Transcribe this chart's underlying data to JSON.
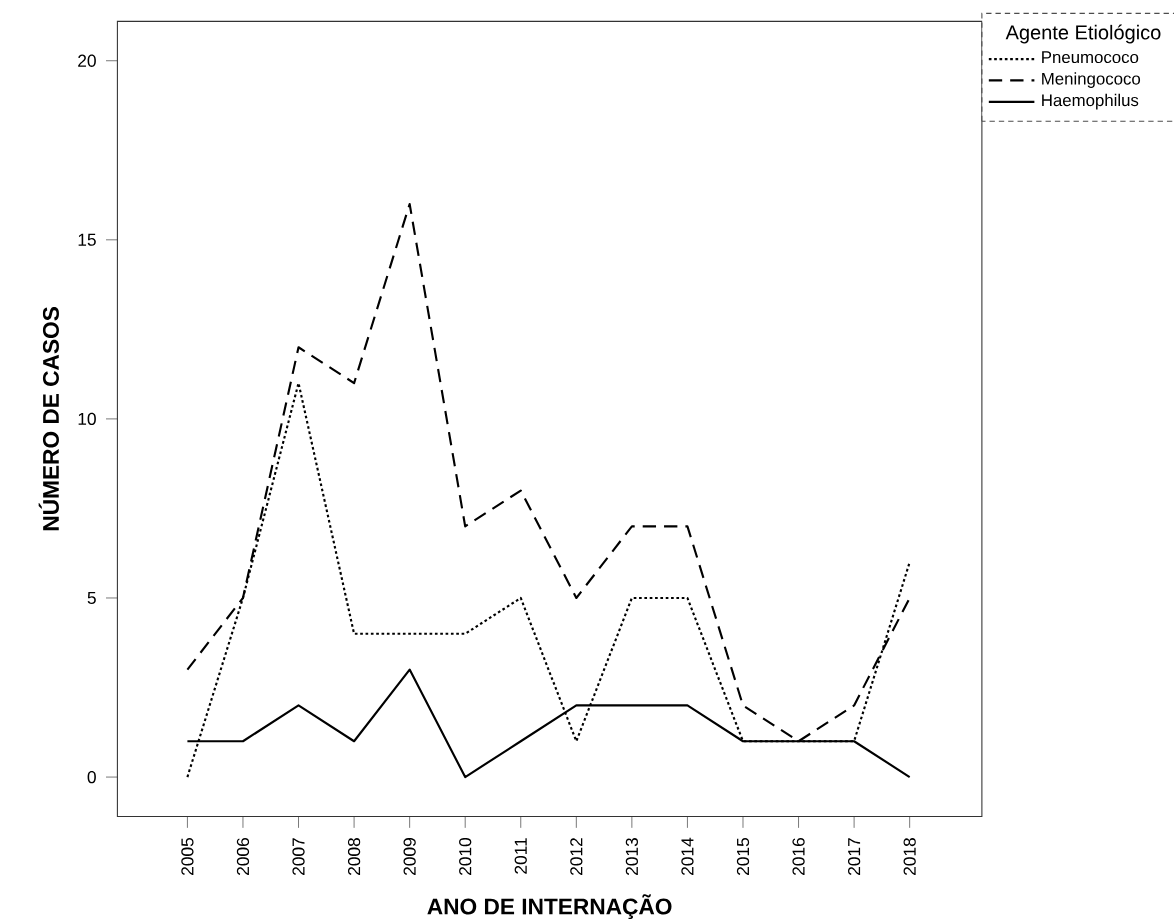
{
  "chart_data": {
    "type": "line",
    "xlabel": "ANO DE INTERNAÇÃO",
    "ylabel": "NÚMERO DE CASOS",
    "legend_title": "Agente Etiológico",
    "categories": [
      "2005",
      "2006",
      "2007",
      "2008",
      "2009",
      "2010",
      "2011",
      "2012",
      "2013",
      "2014",
      "2015",
      "2016",
      "2017",
      "2018"
    ],
    "series": [
      {
        "name": "Pneumococo",
        "color": "#000000",
        "line_style": "dotted",
        "values": [
          0,
          5,
          11,
          4,
          4,
          4,
          5,
          1,
          5,
          5,
          1,
          1,
          1,
          6
        ]
      },
      {
        "name": "Meningococo",
        "color": "#000000",
        "line_style": "dashed",
        "values": [
          3,
          5,
          12,
          11,
          16,
          7,
          8,
          5,
          7,
          7,
          2,
          1,
          2,
          5
        ]
      },
      {
        "name": "Haemophilus",
        "color": "#000000",
        "line_style": "solid",
        "values": [
          1,
          1,
          2,
          1,
          3,
          0,
          1,
          2,
          2,
          2,
          1,
          1,
          1,
          0
        ]
      }
    ],
    "ylim": [
      -1.1,
      21.1
    ],
    "yticks": [
      0,
      5,
      10,
      15,
      20
    ],
    "grid": false,
    "legend": "top right",
    "marker": "none"
  }
}
